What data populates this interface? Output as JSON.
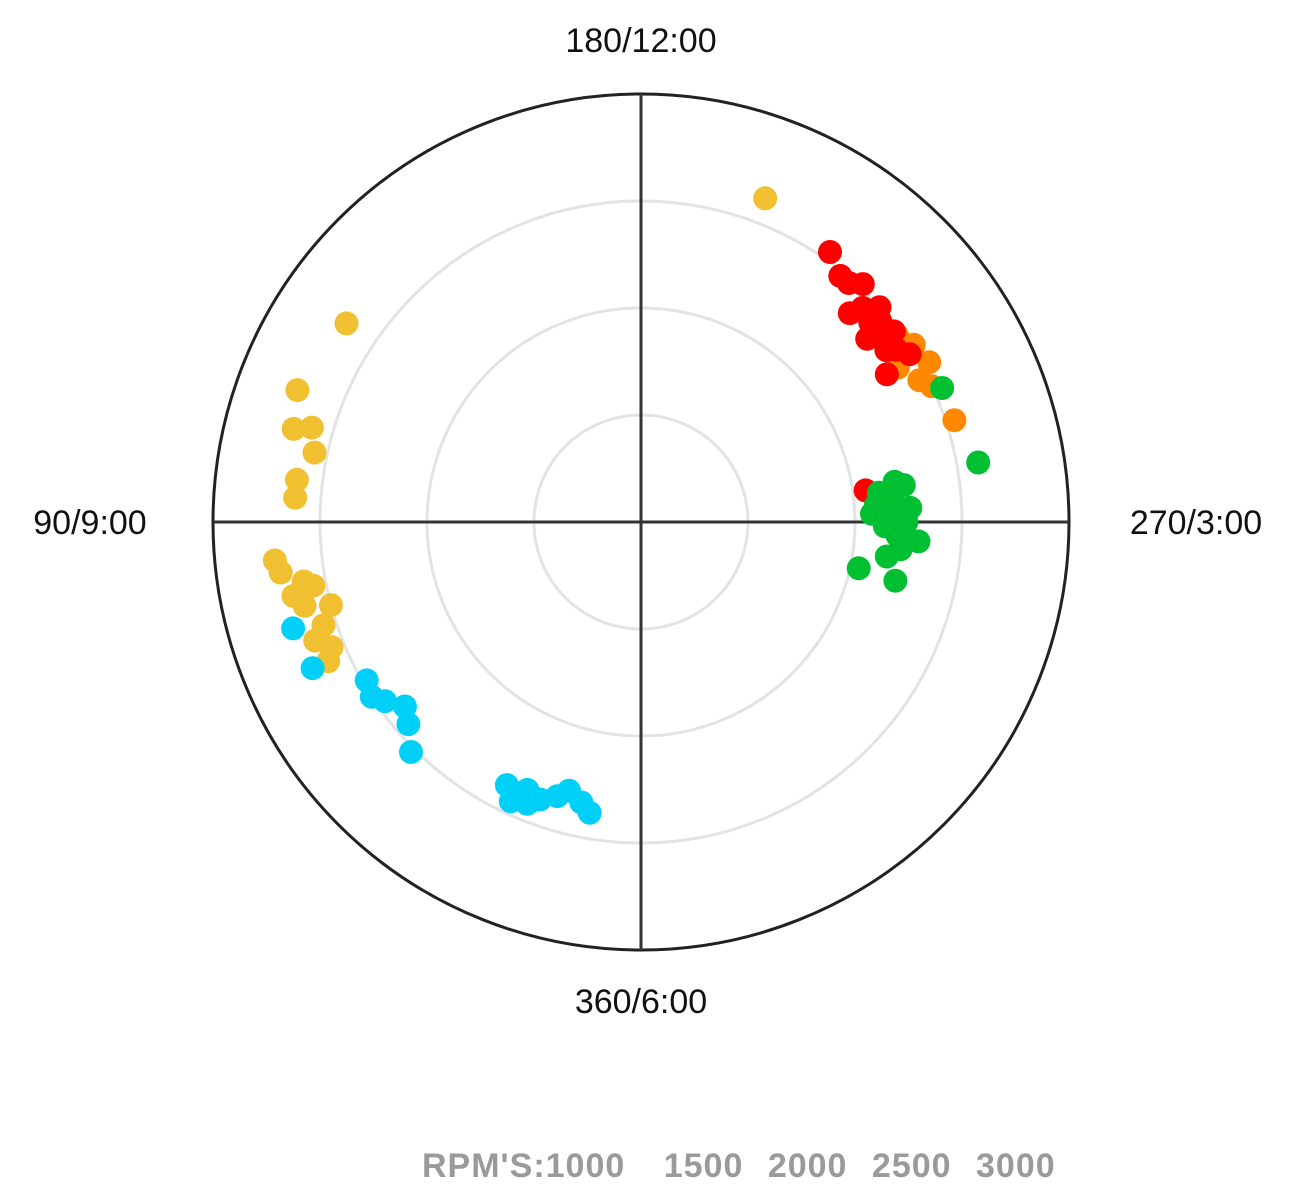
{
  "chart_data": {
    "type": "scatter",
    "title": "",
    "angle_labels": {
      "top": "180/12:00",
      "left": "90/9:00",
      "right": "270/3:00",
      "bottom": "360/6:00"
    },
    "angle_convention": "0/360 at bottom, 90 at left, 180 at top, 270 at right",
    "radial_rings_fraction": [
      0.25,
      0.5,
      0.75
    ],
    "grid": true,
    "legend": {
      "prefix": "RPM'S:",
      "position": "bottom",
      "entries": [
        "1000",
        "1500",
        "2000",
        "2500",
        "3000"
      ]
    },
    "series": [
      {
        "color": "#f0c030",
        "points": [
          {
            "angle": 201,
            "r": 0.81
          },
          {
            "angle": 124,
            "r": 0.83
          },
          {
            "angle": 111,
            "r": 0.86
          },
          {
            "angle": 105,
            "r": 0.84
          },
          {
            "angle": 106,
            "r": 0.8
          },
          {
            "angle": 102,
            "r": 0.78
          },
          {
            "angle": 97,
            "r": 0.81
          },
          {
            "angle": 94,
            "r": 0.81
          },
          {
            "angle": 84,
            "r": 0.86
          },
          {
            "angle": 82,
            "r": 0.85
          },
          {
            "angle": 80,
            "r": 0.8
          },
          {
            "angle": 79,
            "r": 0.78
          },
          {
            "angle": 78,
            "r": 0.83
          },
          {
            "angle": 76,
            "r": 0.81
          },
          {
            "angle": 75,
            "r": 0.75
          },
          {
            "angle": 72,
            "r": 0.78
          },
          {
            "angle": 70,
            "r": 0.81
          },
          {
            "angle": 68,
            "r": 0.78
          },
          {
            "angle": 66,
            "r": 0.8
          }
        ]
      },
      {
        "color": "#00d0f8",
        "points": [
          {
            "angle": 73,
            "r": 0.85
          },
          {
            "angle": 66,
            "r": 0.84
          },
          {
            "angle": 60,
            "r": 0.74
          },
          {
            "angle": 57,
            "r": 0.75
          },
          {
            "angle": 55,
            "r": 0.73
          },
          {
            "angle": 52,
            "r": 0.7
          },
          {
            "angle": 49,
            "r": 0.72
          },
          {
            "angle": 45,
            "r": 0.76
          },
          {
            "angle": 27,
            "r": 0.69
          },
          {
            "angle": 25,
            "r": 0.72
          },
          {
            "angle": 23,
            "r": 0.68
          },
          {
            "angle": 22,
            "r": 0.71
          },
          {
            "angle": 20,
            "r": 0.69
          },
          {
            "angle": 17,
            "r": 0.67
          },
          {
            "angle": 15,
            "r": 0.65
          },
          {
            "angle": 12,
            "r": 0.67
          },
          {
            "angle": 10,
            "r": 0.69
          }
        ]
      },
      {
        "color": "#ff8800",
        "points": [
          {
            "angle": 234,
            "r": 0.74
          },
          {
            "angle": 237,
            "r": 0.76
          },
          {
            "angle": 239,
            "r": 0.7
          },
          {
            "angle": 241,
            "r": 0.77
          },
          {
            "angle": 243,
            "r": 0.73
          },
          {
            "angle": 245,
            "r": 0.75
          },
          {
            "angle": 252,
            "r": 0.77
          }
        ]
      },
      {
        "color": "#ff0000",
        "points": [
          {
            "angle": 215,
            "r": 0.77
          },
          {
            "angle": 219,
            "r": 0.74
          },
          {
            "angle": 221,
            "r": 0.74
          },
          {
            "angle": 223,
            "r": 0.76
          },
          {
            "angle": 225,
            "r": 0.69
          },
          {
            "angle": 226,
            "r": 0.72
          },
          {
            "angle": 228,
            "r": 0.75
          },
          {
            "angle": 229,
            "r": 0.71
          },
          {
            "angle": 230,
            "r": 0.73
          },
          {
            "angle": 231,
            "r": 0.68
          },
          {
            "angle": 232,
            "r": 0.71
          },
          {
            "angle": 233,
            "r": 0.74
          },
          {
            "angle": 235,
            "r": 0.7
          },
          {
            "angle": 236,
            "r": 0.72
          },
          {
            "angle": 238,
            "r": 0.74
          },
          {
            "angle": 239,
            "r": 0.67
          },
          {
            "angle": 262,
            "r": 0.53
          }
        ]
      },
      {
        "color": "#00c032",
        "points": [
          {
            "angle": 246,
            "r": 0.77
          },
          {
            "angle": 260,
            "r": 0.8
          },
          {
            "angle": 261,
            "r": 0.6
          },
          {
            "angle": 262,
            "r": 0.62
          },
          {
            "angle": 263,
            "r": 0.56
          },
          {
            "angle": 264,
            "r": 0.58
          },
          {
            "angle": 265,
            "r": 0.59
          },
          {
            "angle": 266,
            "r": 0.55
          },
          {
            "angle": 267,
            "r": 0.63
          },
          {
            "angle": 268,
            "r": 0.58
          },
          {
            "angle": 268,
            "r": 0.54
          },
          {
            "angle": 270,
            "r": 0.62
          },
          {
            "angle": 271,
            "r": 0.57
          },
          {
            "angle": 273,
            "r": 0.6
          },
          {
            "angle": 274,
            "r": 0.65
          },
          {
            "angle": 276,
            "r": 0.61
          },
          {
            "angle": 278,
            "r": 0.58
          },
          {
            "angle": 282,
            "r": 0.52
          },
          {
            "angle": 283,
            "r": 0.61
          }
        ]
      }
    ]
  }
}
